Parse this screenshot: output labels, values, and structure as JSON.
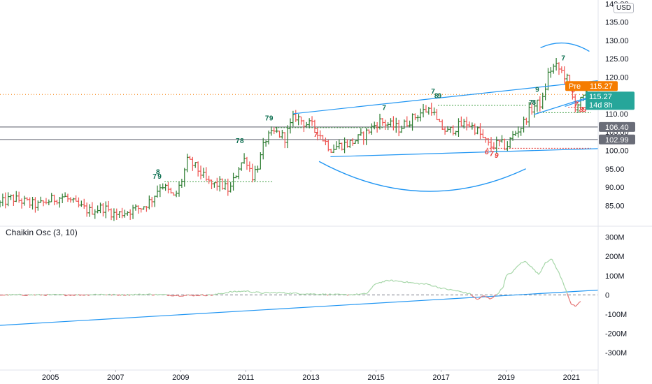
{
  "currency": "USD",
  "price_tags": {
    "pre_label": "Pre",
    "pre_value": "115.27",
    "last_value": "115.27",
    "countdown": "14d 8h",
    "level_1": "106.40",
    "level_2": "102.99",
    "partial_hidden_label": "105.00"
  },
  "oscillator": {
    "title": "Chaikin Osc (3, 10)"
  },
  "colors": {
    "up": "#26a69a",
    "down": "#ef5350",
    "price_bar": "#2e7d32",
    "trendline": "#2196f3",
    "pre_tag": "#f57c00",
    "last_tag": "#26a69a",
    "level_tag": "#6a6d78",
    "osc_line": "#a5d6a7",
    "osc_line_down": "#e57373",
    "support_green": "#43a047",
    "support_red": "#e53935"
  },
  "chart_data": [
    {
      "type": "bar",
      "panel": "price",
      "y_ticks": [
        "85.00",
        "90.00",
        "95.00",
        "100.00",
        "105.00",
        "110.00",
        "115.00",
        "120.00",
        "125.00",
        "130.00",
        "135.00",
        "140.00"
      ],
      "y_tick_values": [
        85,
        90,
        95,
        100,
        105,
        110,
        115,
        120,
        125,
        130,
        135,
        140
      ],
      "ylim": [
        80.5,
        141
      ],
      "x_ticks": [
        "2005",
        "2007",
        "2009",
        "2011",
        "2013",
        "2015",
        "2017",
        "2019",
        "2021"
      ],
      "xlim": [
        2003.45,
        2021.82
      ],
      "last_price": 115.27,
      "horizontal_levels": [
        106.4,
        102.99
      ],
      "anchors": [
        [
          2003.45,
          85.5
        ],
        [
          2003.8,
          87.0
        ],
        [
          2004.2,
          86.0
        ],
        [
          2004.6,
          85.0
        ],
        [
          2005.0,
          86.5
        ],
        [
          2005.4,
          87.5
        ],
        [
          2005.8,
          85.0
        ],
        [
          2006.2,
          83.5
        ],
        [
          2006.6,
          84.5
        ],
        [
          2007.0,
          82.5
        ],
        [
          2007.4,
          83.5
        ],
        [
          2007.8,
          84.5
        ],
        [
          2008.1,
          86.5
        ],
        [
          2008.4,
          91.0
        ],
        [
          2008.6,
          89.0
        ],
        [
          2008.8,
          87.0
        ],
        [
          2009.0,
          91.0
        ],
        [
          2009.2,
          97.0
        ],
        [
          2009.4,
          96.0
        ],
        [
          2009.6,
          94.0
        ],
        [
          2009.8,
          91.5
        ],
        [
          2010.0,
          90.5
        ],
        [
          2010.2,
          91.0
        ],
        [
          2010.5,
          89.0
        ],
        [
          2010.8,
          96.0
        ],
        [
          2011.0,
          98.0
        ],
        [
          2011.2,
          93.0
        ],
        [
          2011.4,
          96.5
        ],
        [
          2011.6,
          103.0
        ],
        [
          2011.9,
          105.0
        ],
        [
          2012.2,
          103.5
        ],
        [
          2012.5,
          109.5
        ],
        [
          2012.8,
          107.5
        ],
        [
          2013.1,
          106.5
        ],
        [
          2013.3,
          104.0
        ],
        [
          2013.6,
          100.5
        ],
        [
          2013.9,
          101.5
        ],
        [
          2014.2,
          102.0
        ],
        [
          2014.6,
          104.0
        ],
        [
          2014.9,
          106.5
        ],
        [
          2015.1,
          108.0
        ],
        [
          2015.4,
          107.0
        ],
        [
          2015.7,
          106.0
        ],
        [
          2016.0,
          108.0
        ],
        [
          2016.4,
          110.5
        ],
        [
          2016.7,
          111.5
        ],
        [
          2016.9,
          107.0
        ],
        [
          2017.2,
          105.0
        ],
        [
          2017.5,
          106.5
        ],
        [
          2017.8,
          107.5
        ],
        [
          2018.1,
          105.5
        ],
        [
          2018.3,
          103.0
        ],
        [
          2018.5,
          101.0
        ],
        [
          2018.8,
          102.0
        ],
        [
          2019.0,
          101.0
        ],
        [
          2019.2,
          104.0
        ],
        [
          2019.5,
          107.0
        ],
        [
          2019.7,
          110.5
        ],
        [
          2019.9,
          112.5
        ],
        [
          2020.1,
          113.0
        ],
        [
          2020.3,
          121.5
        ],
        [
          2020.5,
          123.0
        ],
        [
          2020.7,
          121.5
        ],
        [
          2020.9,
          119.0
        ],
        [
          2021.1,
          112.0
        ],
        [
          2021.3,
          113.5
        ],
        [
          2021.48,
          115.27
        ]
      ],
      "td_sequential_labels": [
        {
          "text": "8",
          "x": 2008.3,
          "y": 93.5,
          "color": "green"
        },
        {
          "text": "7",
          "x": 2008.2,
          "y": 92.3,
          "color": "green"
        },
        {
          "text": "9",
          "x": 2008.35,
          "y": 92.3,
          "color": "green"
        },
        {
          "text": "7",
          "x": 2010.75,
          "y": 102.0,
          "color": "green"
        },
        {
          "text": "8",
          "x": 2010.88,
          "y": 102.0,
          "color": "green"
        },
        {
          "text": "7",
          "x": 2011.65,
          "y": 108.2,
          "color": "green"
        },
        {
          "text": "9",
          "x": 2011.78,
          "y": 108.2,
          "color": "green"
        },
        {
          "text": "7",
          "x": 2013.15,
          "y": 103.7,
          "color": "red"
        },
        {
          "text": "7",
          "x": 2015.25,
          "y": 111.0,
          "color": "green"
        },
        {
          "text": "7",
          "x": 2016.75,
          "y": 115.5,
          "color": "green"
        },
        {
          "text": "8",
          "x": 2016.85,
          "y": 114.3,
          "color": "green"
        },
        {
          "text": "9",
          "x": 2016.95,
          "y": 114.3,
          "color": "green"
        },
        {
          "text": "6",
          "x": 2018.4,
          "y": 99.0,
          "color": "red"
        },
        {
          "text": "7",
          "x": 2018.55,
          "y": 98.5,
          "color": "red"
        },
        {
          "text": "9",
          "x": 2018.7,
          "y": 98.0,
          "color": "red"
        },
        {
          "text": "9",
          "x": 2019.95,
          "y": 116.0,
          "color": "green"
        },
        {
          "text": "7",
          "x": 2019.75,
          "y": 112.5,
          "color": "green"
        },
        {
          "text": "8",
          "x": 2019.85,
          "y": 112.5,
          "color": "green"
        },
        {
          "text": "7",
          "x": 2020.75,
          "y": 124.5,
          "color": "green"
        },
        {
          "text": "6",
          "x": 2021.05,
          "y": 115.8,
          "color": "red"
        },
        {
          "text": "7",
          "x": 2021.15,
          "y": 112.0,
          "color": "red"
        },
        {
          "text": "8",
          "x": 2021.3,
          "y": 110.5,
          "color": "red"
        },
        {
          "text": "9",
          "x": 2021.4,
          "y": 110.5,
          "color": "red"
        }
      ],
      "trendlines": [
        [
          [
            2012.45,
            110.0
          ],
          [
            2021.82,
            119.0
          ]
        ],
        [
          [
            2013.6,
            98.3
          ],
          [
            2021.82,
            100.5
          ]
        ],
        [
          [
            2019.85,
            109.8
          ],
          [
            2021.7,
            115.0
          ]
        ],
        [
          [
            2020.8,
            112.0
          ],
          [
            2021.7,
            114.8
          ]
        ]
      ],
      "support_lines": [
        {
          "from": [
            2008.5,
            91.5
          ],
          "to": [
            2011.85,
            91.5
          ],
          "color": "green"
        },
        {
          "from": [
            2011.9,
            106.2
          ],
          "to": [
            2015.25,
            106.2
          ],
          "color": "green"
        },
        {
          "from": [
            2016.9,
            112.3
          ],
          "to": [
            2019.6,
            112.3
          ],
          "color": "green"
        },
        {
          "from": [
            2019.95,
            110.3
          ],
          "to": [
            2021.6,
            110.3
          ],
          "color": "green"
        },
        {
          "from": [
            2018.4,
            100.6
          ],
          "to": [
            2021.6,
            100.6
          ],
          "color": "red"
        },
        {
          "from": [
            2020.9,
            111.8
          ],
          "to": [
            2021.4,
            111.8
          ],
          "color": "red"
        }
      ],
      "arcs": [
        {
          "shape": "cup",
          "from": [
            2013.25,
            97.0
          ],
          "to": [
            2019.6,
            95.0
          ],
          "depth": 89.0
        },
        {
          "shape": "cap",
          "from": [
            2020.05,
            128.0
          ],
          "to": [
            2021.55,
            127.0
          ],
          "peak": 129.0
        }
      ]
    },
    {
      "type": "line",
      "panel": "oscillator",
      "name": "Chaikin Osc (3, 10)",
      "y_ticks": [
        "-300M",
        "-200M",
        "-100M",
        "0",
        "100M",
        "200M",
        "300M"
      ],
      "y_tick_values": [
        -300,
        -200,
        -100,
        0,
        100,
        200,
        300
      ],
      "ylim": [
        -390,
        335
      ],
      "anchors": [
        [
          2003.45,
          0
        ],
        [
          2006.0,
          0
        ],
        [
          2006.5,
          3
        ],
        [
          2007.0,
          0
        ],
        [
          2008.0,
          3
        ],
        [
          2009.0,
          -3
        ],
        [
          2010.0,
          0
        ],
        [
          2010.5,
          15
        ],
        [
          2011.0,
          20
        ],
        [
          2011.5,
          10
        ],
        [
          2012.0,
          12
        ],
        [
          2012.5,
          8
        ],
        [
          2013.0,
          5
        ],
        [
          2013.5,
          3
        ],
        [
          2014.0,
          0
        ],
        [
          2014.7,
          5
        ],
        [
          2015.0,
          60
        ],
        [
          2015.4,
          75
        ],
        [
          2015.8,
          70
        ],
        [
          2016.2,
          60
        ],
        [
          2016.6,
          55
        ],
        [
          2017.0,
          35
        ],
        [
          2017.5,
          20
        ],
        [
          2017.9,
          5
        ],
        [
          2018.1,
          -25
        ],
        [
          2018.3,
          -5
        ],
        [
          2018.5,
          -20
        ],
        [
          2018.7,
          0
        ],
        [
          2018.9,
          40
        ],
        [
          2019.0,
          100
        ],
        [
          2019.2,
          120
        ],
        [
          2019.4,
          160
        ],
        [
          2019.6,
          175
        ],
        [
          2019.8,
          140
        ],
        [
          2020.0,
          105
        ],
        [
          2020.2,
          170
        ],
        [
          2020.4,
          185
        ],
        [
          2020.6,
          120
        ],
        [
          2020.8,
          40
        ],
        [
          2021.0,
          -50
        ],
        [
          2021.15,
          -60
        ],
        [
          2021.3,
          -30
        ]
      ],
      "trendline": [
        [
          2003.45,
          -158
        ],
        [
          2021.82,
          25
        ]
      ],
      "zero_line": 0
    }
  ]
}
